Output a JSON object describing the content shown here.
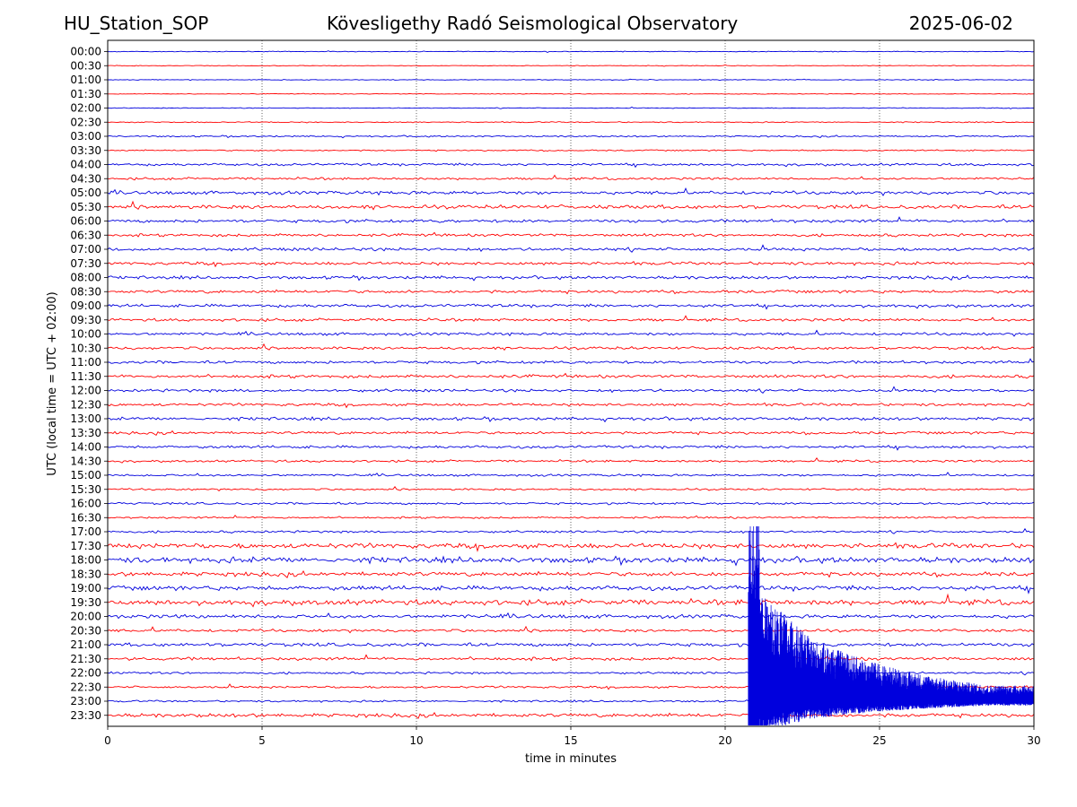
{
  "header": {
    "station": "HU_Station_SOP",
    "observatory": "Kövesligethy Radó Seismological Observatory",
    "date": "2025-06-02"
  },
  "chart_data": {
    "type": "line",
    "title": "Kövesligethy Radó Seismological Observatory",
    "xlabel": "time in minutes",
    "ylabel": "UTC (local time = UTC + 02:00)",
    "xlim": [
      0,
      30
    ],
    "xticks": [
      "0",
      "5",
      "10",
      "15",
      "20",
      "25",
      "30"
    ],
    "grid": "vertical dotted lines at 5, 10, 15, 20, 25 minutes",
    "colors": {
      "even": "#0000dd",
      "odd": "#ff0000"
    },
    "rows": [
      {
        "label": "00:00",
        "noise": 0.25
      },
      {
        "label": "00:30",
        "noise": 0.22
      },
      {
        "label": "01:00",
        "noise": 0.25
      },
      {
        "label": "01:30",
        "noise": 0.22
      },
      {
        "label": "02:00",
        "noise": 0.25
      },
      {
        "label": "02:30",
        "noise": 0.35
      },
      {
        "label": "03:00",
        "noise": 0.5
      },
      {
        "label": "03:30",
        "noise": 0.45
      },
      {
        "label": "04:00",
        "noise": 0.8
      },
      {
        "label": "04:30",
        "noise": 0.75
      },
      {
        "label": "05:00",
        "noise": 1.1
      },
      {
        "label": "05:30",
        "noise": 1.2
      },
      {
        "label": "06:00",
        "noise": 1.0
      },
      {
        "label": "06:30",
        "noise": 0.9
      },
      {
        "label": "07:00",
        "noise": 1.0
      },
      {
        "label": "07:30",
        "noise": 1.0
      },
      {
        "label": "08:00",
        "noise": 1.0
      },
      {
        "label": "08:30",
        "noise": 1.0
      },
      {
        "label": "09:00",
        "noise": 1.0
      },
      {
        "label": "09:30",
        "noise": 0.9
      },
      {
        "label": "10:00",
        "noise": 0.9
      },
      {
        "label": "10:30",
        "noise": 0.9
      },
      {
        "label": "11:00",
        "noise": 0.9
      },
      {
        "label": "11:30",
        "noise": 1.0
      },
      {
        "label": "12:00",
        "noise": 0.9
      },
      {
        "label": "12:30",
        "noise": 0.9
      },
      {
        "label": "13:00",
        "noise": 1.0
      },
      {
        "label": "13:30",
        "noise": 0.9
      },
      {
        "label": "14:00",
        "noise": 0.9
      },
      {
        "label": "14:30",
        "noise": 0.7
      },
      {
        "label": "15:00",
        "noise": 0.7
      },
      {
        "label": "15:30",
        "noise": 0.6
      },
      {
        "label": "16:00",
        "noise": 0.7
      },
      {
        "label": "16:30",
        "noise": 0.6
      },
      {
        "label": "17:00",
        "noise": 0.7
      },
      {
        "label": "17:30",
        "noise": 1.6
      },
      {
        "label": "18:00",
        "noise": 1.8
      },
      {
        "label": "18:30",
        "noise": 1.4
      },
      {
        "label": "19:00",
        "noise": 1.5
      },
      {
        "label": "19:30",
        "noise": 1.7
      },
      {
        "label": "20:00",
        "noise": 1.2
      },
      {
        "label": "20:30",
        "noise": 0.9
      },
      {
        "label": "21:00",
        "noise": 1.1
      },
      {
        "label": "21:30",
        "noise": 1.0
      },
      {
        "label": "22:00",
        "noise": 0.7
      },
      {
        "label": "22:30",
        "noise": 0.7
      },
      {
        "label": "23:00",
        "noise": 0.6
      },
      {
        "label": "23:30",
        "noise": 1.2
      }
    ],
    "event": {
      "row": "23:00",
      "onset_minutes": 20.75,
      "peak_rows_up": 14,
      "peak_rows_down": 1.8,
      "coda_end_minutes": 30
    }
  }
}
